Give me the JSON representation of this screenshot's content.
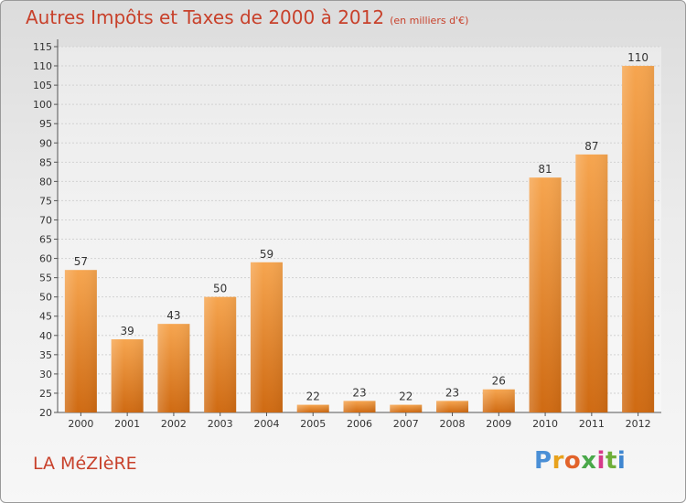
{
  "title": "Autres Impôts et Taxes de 2000 à 2012",
  "title_unit": "(en milliers d'€)",
  "commune": "LA MéZIèRE",
  "logo": {
    "letters": [
      "P",
      "r",
      "o",
      "x",
      "i",
      "t",
      "i"
    ],
    "colors": [
      "#4a8fd6",
      "#e8a21c",
      "#e2632a",
      "#4aa84a",
      "#d63b8a",
      "#6fae3a",
      "#3f86d0"
    ]
  },
  "colors": {
    "bar_top": "#f6a54f",
    "bar_bottom": "#cf6a12",
    "title": "#c8412b"
  },
  "chart_data": {
    "type": "bar",
    "title": "Autres Impôts et Taxes de 2000 à 2012",
    "subtitle": "(en milliers d'€)",
    "categories": [
      "2000",
      "2001",
      "2002",
      "2003",
      "2004",
      "2005",
      "2006",
      "2007",
      "2008",
      "2009",
      "2010",
      "2011",
      "2012"
    ],
    "values": [
      57,
      39,
      43,
      50,
      59,
      22,
      23,
      22,
      23,
      26,
      81,
      87,
      110
    ],
    "ylim": [
      20,
      115
    ],
    "yticks": [
      20,
      25,
      30,
      35,
      40,
      45,
      50,
      55,
      60,
      65,
      70,
      75,
      80,
      85,
      90,
      95,
      100,
      105,
      110,
      115
    ],
    "grid": true,
    "xlabel": "",
    "ylabel": ""
  }
}
